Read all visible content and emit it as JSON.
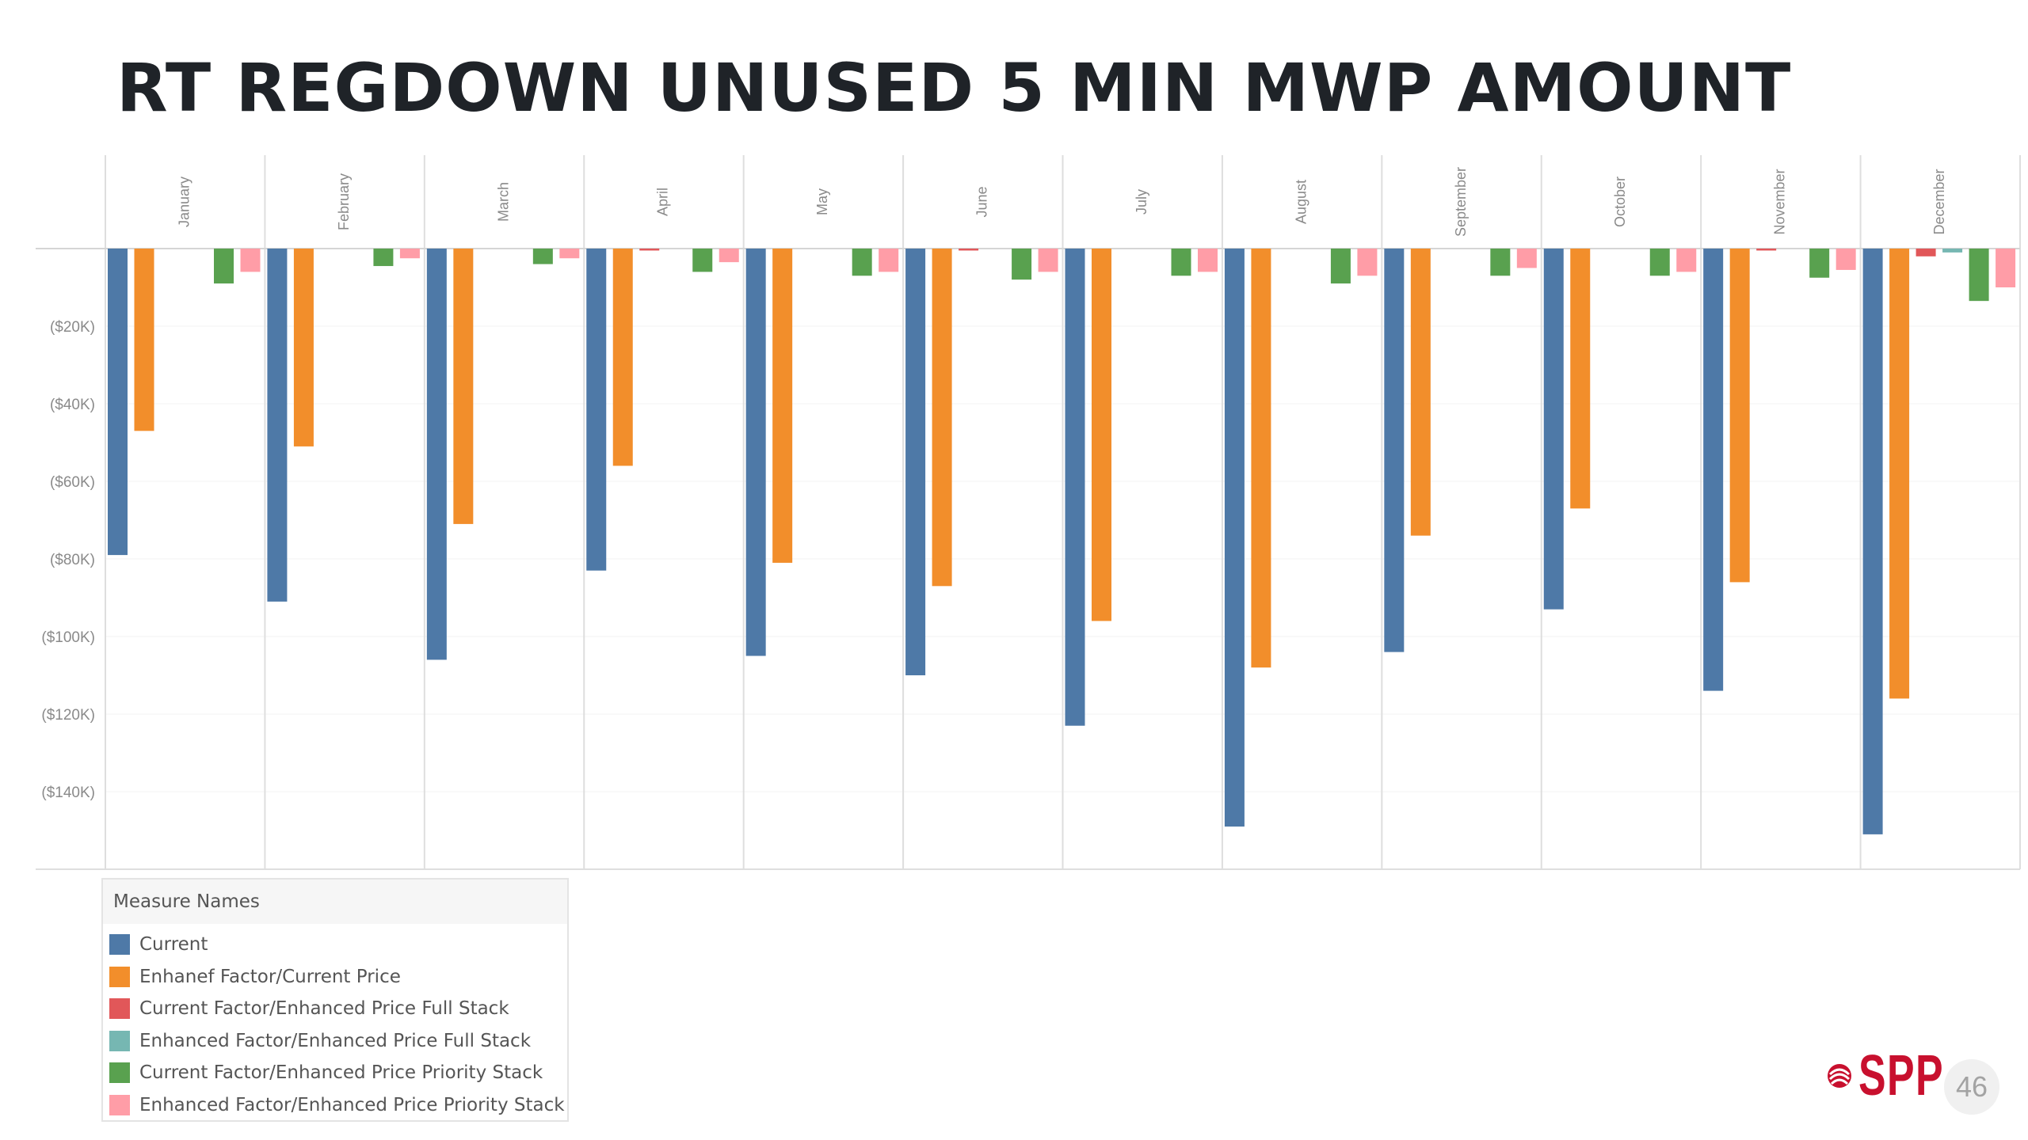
{
  "slide": {
    "title": "RT REGDOWN UNUSED 5 MIN MWP AMOUNT",
    "logo_text": "SPP",
    "logo_icon": "spp-swirl-icon",
    "page_number": "46"
  },
  "legend": {
    "title": "Measure Names",
    "items": [
      {
        "label": "Current",
        "color": "#4e79a7"
      },
      {
        "label": "Enhanef Factor/Current Price",
        "color": "#f28e2b"
      },
      {
        "label": "Current Factor/Enhanced Price Full Stack",
        "color": "#e15759"
      },
      {
        "label": "Enhanced Factor/Enhanced Price Full Stack",
        "color": "#76b7b2"
      },
      {
        "label": "Current Factor/Enhanced Price Priority Stack",
        "color": "#59a14f"
      },
      {
        "label": "Enhanced Factor/Enhanced Price Priority Stack",
        "color": "#ff9da7"
      }
    ]
  },
  "chart_data": {
    "type": "bar",
    "title": "RT REGDOWN UNUSED 5 MIN MWP AMOUNT",
    "xlabel": "",
    "ylabel": "",
    "grid": true,
    "legend_position": "bottom-left",
    "categories": [
      "January",
      "February",
      "March",
      "April",
      "May",
      "June",
      "July",
      "August",
      "September",
      "October",
      "November",
      "December"
    ],
    "ylim": [
      -160,
      0
    ],
    "y_unit": "K$",
    "y_ticks": [
      0,
      -20,
      -40,
      -60,
      -80,
      -100,
      -120,
      -140
    ],
    "y_tick_labels": [
      "",
      "($20K)",
      "($40K)",
      "($60K)",
      "($80K)",
      "($100K)",
      "($120K)",
      "($140K)"
    ],
    "series": [
      {
        "name": "Current",
        "color": "#4e79a7",
        "values": [
          -79,
          -91,
          -106,
          -83,
          -105,
          -110,
          -123,
          -149,
          -104,
          -93,
          -114,
          -151
        ]
      },
      {
        "name": "Enhanef Factor/Current Price",
        "color": "#f28e2b",
        "values": [
          -47,
          -51,
          -71,
          -56,
          -81,
          -87,
          -96,
          -108,
          -74,
          -67,
          -86,
          -116
        ]
      },
      {
        "name": "Current Factor/Enhanced Price Full Stack",
        "color": "#e15759",
        "values": [
          0,
          0,
          0,
          -0.5,
          0,
          -0.5,
          0,
          0,
          0,
          0,
          -0.5,
          -2
        ]
      },
      {
        "name": "Enhanced Factor/Enhanced Price Full Stack",
        "color": "#76b7b2",
        "values": [
          0,
          0,
          0,
          0,
          0,
          0,
          0,
          0,
          0,
          0,
          0,
          -1
        ]
      },
      {
        "name": "Current Factor/Enhanced Price Priority Stack",
        "color": "#59a14f",
        "values": [
          -9,
          -4.5,
          -4,
          -6,
          -7,
          -8,
          -7,
          -9,
          -7,
          -7,
          -7.5,
          -13.5
        ]
      },
      {
        "name": "Enhanced Factor/Enhanced Price Priority Stack",
        "color": "#ff9da7",
        "values": [
          -6,
          -2.5,
          -2.5,
          -3.5,
          -6,
          -6,
          -6,
          -7,
          -5,
          -6,
          -5.5,
          -10
        ]
      }
    ]
  }
}
